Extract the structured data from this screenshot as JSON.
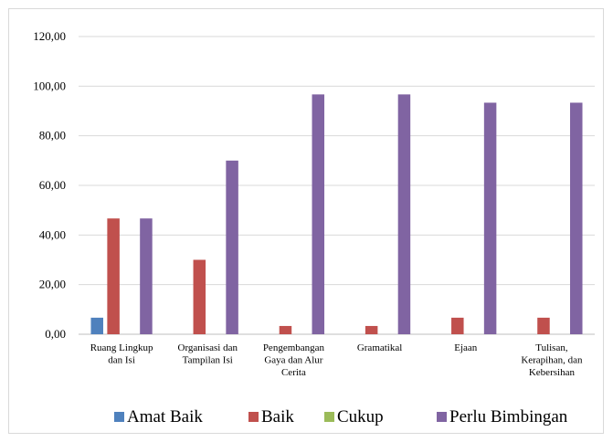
{
  "chart_data": {
    "type": "bar",
    "title": "",
    "xlabel": "",
    "ylabel": "",
    "ylim": [
      0,
      120
    ],
    "yticks": [
      "0,00",
      "20,00",
      "40,00",
      "60,00",
      "80,00",
      "100,00",
      "120,00"
    ],
    "grid": true,
    "legend_position": "bottom",
    "categories": [
      [
        "Ruang Lingkup",
        "dan Isi"
      ],
      [
        "Organisasi dan",
        "Tampilan Isi"
      ],
      [
        "Pengembangan",
        "Gaya dan Alur",
        "Cerita"
      ],
      [
        "Gramatikal"
      ],
      [
        "Ejaan"
      ],
      [
        "Tulisan,",
        "Kerapihan, dan",
        "Kebersihan"
      ]
    ],
    "series": [
      {
        "name": "Amat Baik",
        "color": "#4f81bd",
        "values": [
          6.67,
          0,
          0,
          0,
          0,
          0
        ]
      },
      {
        "name": "Baik",
        "color": "#c0504d",
        "values": [
          46.67,
          30,
          3.33,
          3.33,
          6.67,
          6.67
        ]
      },
      {
        "name": "Cukup",
        "color": "#9bbb59",
        "values": [
          0,
          0,
          0,
          0,
          0,
          0
        ]
      },
      {
        "name": "Perlu Bimbingan",
        "color": "#8064a2",
        "values": [
          46.67,
          70,
          96.67,
          96.67,
          93.33,
          93.33
        ]
      }
    ]
  }
}
